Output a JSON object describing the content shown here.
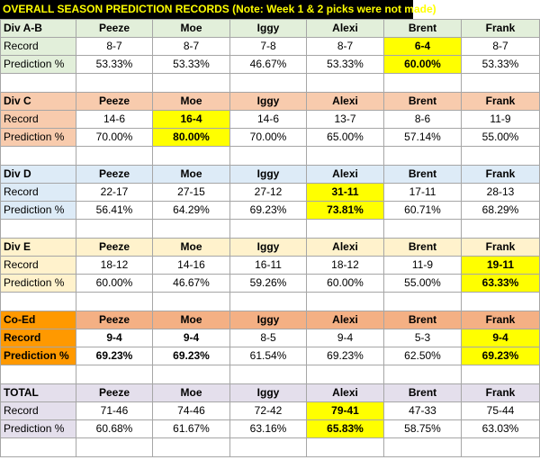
{
  "title": "OVERALL SEASON PREDICTION RECORDS (Note: Week 1 & 2 picks were not made)",
  "columns": [
    "Peeze",
    "Moe",
    "Iggy",
    "Alexi",
    "Brent",
    "Frank"
  ],
  "colors": {
    "div_ab": "#e2efda",
    "div_c": "#f8cbad",
    "div_d": "#ddebf7",
    "div_e": "#fff2cc",
    "coed": "#f4b084",
    "coed_label": "#ff9900",
    "total": "#e4dfec",
    "highlight": "#ffff00"
  },
  "sections": [
    {
      "name": "Div A-B",
      "record_label": "Record",
      "pct_label": "Prediction %",
      "records": [
        "8-7",
        "8-7",
        "7-8",
        "8-7",
        "6-4",
        "8-7"
      ],
      "pcts": [
        "53.33%",
        "53.33%",
        "46.67%",
        "53.33%",
        "60.00%",
        "53.33%"
      ],
      "highlight_col": 4
    },
    {
      "name": "Div C",
      "record_label": "Record",
      "pct_label": "Prediction %",
      "records": [
        "14-6",
        "16-4",
        "14-6",
        "13-7",
        "8-6",
        "11-9"
      ],
      "pcts": [
        "70.00%",
        "80.00%",
        "70.00%",
        "65.00%",
        "57.14%",
        "55.00%"
      ],
      "highlight_col": 1
    },
    {
      "name": "Div D",
      "record_label": "Record",
      "pct_label": "Prediction %",
      "records": [
        "22-17",
        "27-15",
        "27-12",
        "31-11",
        "17-11",
        "28-13"
      ],
      "pcts": [
        "56.41%",
        "64.29%",
        "69.23%",
        "73.81%",
        "60.71%",
        "68.29%"
      ],
      "highlight_col": 3
    },
    {
      "name": "Div E",
      "record_label": "Record",
      "pct_label": "Prediction %",
      "records": [
        "18-12",
        "14-16",
        "16-11",
        "18-12",
        "11-9",
        "19-11"
      ],
      "pcts": [
        "60.00%",
        "46.67%",
        "59.26%",
        "60.00%",
        "55.00%",
        "63.33%"
      ],
      "highlight_col": 5
    },
    {
      "name": "Co-Ed",
      "record_label": "Record",
      "pct_label": "Prediction %",
      "records": [
        "9-4",
        "9-4",
        "8-5",
        "9-4",
        "5-3",
        "9-4"
      ],
      "pcts": [
        "69.23%",
        "69.23%",
        "61.54%",
        "69.23%",
        "62.50%",
        "69.23%"
      ],
      "highlight_col": 5
    },
    {
      "name": "TOTAL",
      "record_label": "Record",
      "pct_label": "Prediction %",
      "records": [
        "71-46",
        "74-46",
        "72-42",
        "79-41",
        "47-33",
        "75-44"
      ],
      "pcts": [
        "60.68%",
        "61.67%",
        "63.16%",
        "65.83%",
        "58.75%",
        "63.03%"
      ],
      "highlight_col": 3
    }
  ]
}
